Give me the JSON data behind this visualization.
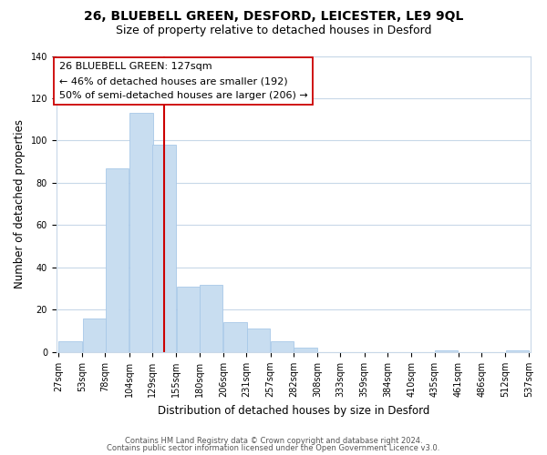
{
  "title": "26, BLUEBELL GREEN, DESFORD, LEICESTER, LE9 9QL",
  "subtitle": "Size of property relative to detached houses in Desford",
  "xlabel": "Distribution of detached houses by size in Desford",
  "ylabel": "Number of detached properties",
  "bar_color": "#c8ddf0",
  "bar_edge_color": "#a8c8e8",
  "bar_left_edges": [
    27,
    53,
    78,
    104,
    129,
    155,
    180,
    206,
    231,
    257,
    282,
    308,
    333,
    359,
    384,
    410,
    435,
    461,
    486,
    512
  ],
  "bar_heights": [
    5,
    16,
    87,
    113,
    98,
    31,
    32,
    14,
    11,
    5,
    2,
    0,
    0,
    0,
    0,
    0,
    1,
    0,
    0,
    1
  ],
  "bin_width": 26,
  "x_tick_positions": [
    27,
    53,
    78,
    104,
    129,
    155,
    180,
    206,
    231,
    257,
    282,
    308,
    333,
    359,
    384,
    410,
    435,
    461,
    486,
    512,
    537
  ],
  "x_tick_labels": [
    "27sqm",
    "53sqm",
    "78sqm",
    "104sqm",
    "129sqm",
    "155sqm",
    "180sqm",
    "206sqm",
    "231sqm",
    "257sqm",
    "282sqm",
    "308sqm",
    "333sqm",
    "359sqm",
    "384sqm",
    "410sqm",
    "435sqm",
    "461sqm",
    "486sqm",
    "512sqm",
    "537sqm"
  ],
  "ylim": [
    0,
    140
  ],
  "yticks": [
    0,
    20,
    40,
    60,
    80,
    100,
    120,
    140
  ],
  "vline_x": 129,
  "vline_color": "#cc0000",
  "annotation_title": "26 BLUEBELL GREEN: 127sqm",
  "annotation_line1": "← 46% of detached houses are smaller (192)",
  "annotation_line2": "50% of semi-detached houses are larger (206) →",
  "annotation_box_color": "#ffffff",
  "annotation_box_edge": "#cc0000",
  "footer1": "Contains HM Land Registry data © Crown copyright and database right 2024.",
  "footer2": "Contains public sector information licensed under the Open Government Licence v3.0.",
  "bg_color": "#ffffff",
  "grid_color": "#c8d8e8",
  "title_fontsize": 10,
  "subtitle_fontsize": 9,
  "tick_fontsize": 7,
  "ylabel_fontsize": 8.5,
  "xlabel_fontsize": 8.5,
  "annotation_fontsize": 8,
  "footer_fontsize": 6
}
